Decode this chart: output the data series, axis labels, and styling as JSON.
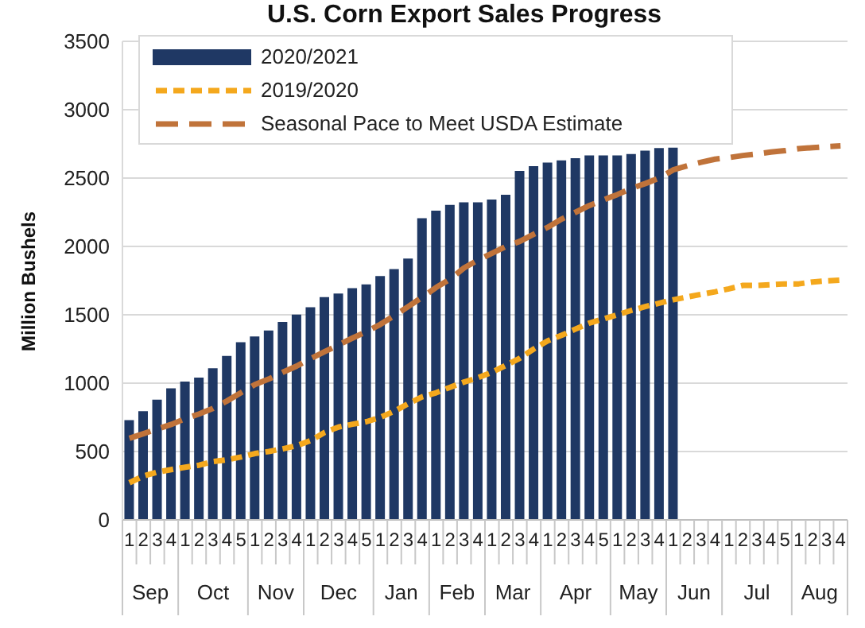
{
  "chart_data": {
    "type": "bar",
    "title": "U.S. Corn Export Sales Progress",
    "ylabel": "Million Bushels",
    "categories": [
      "1",
      "2",
      "3",
      "4",
      "1",
      "2",
      "3",
      "4",
      "5",
      "1",
      "2",
      "3",
      "4",
      "1",
      "2",
      "3",
      "4",
      "5",
      "1",
      "2",
      "3",
      "4",
      "1",
      "2",
      "3",
      "4",
      "1",
      "2",
      "3",
      "4",
      "1",
      "2",
      "3",
      "4",
      "5",
      "1",
      "2",
      "3",
      "4",
      "1",
      "2",
      "3",
      "4",
      "1",
      "2",
      "3",
      "4",
      "5",
      "1",
      "2",
      "3",
      "4"
    ],
    "annotations": [
      "Sep",
      "Oct",
      "Nov",
      "Dec",
      "Jan",
      "Feb",
      "Mar",
      "Apr",
      "May",
      "Jun",
      "Jul",
      "Aug"
    ],
    "series": [
      {
        "name": "2020/2021",
        "color": "#1f3864",
        "values": [
          729,
          795,
          880,
          962,
          1012,
          1040,
          1109,
          1199,
          1300,
          1342,
          1385,
          1447,
          1501,
          1555,
          1629,
          1656,
          1695,
          1722,
          1784,
          1835,
          1912,
          2207,
          2261,
          2304,
          2323,
          2323,
          2343,
          2378,
          2552,
          2587,
          2614,
          2630,
          2645,
          2665,
          2665,
          2665,
          2676,
          2700,
          2719,
          2723,
          null,
          null,
          null,
          null,
          null,
          null,
          null,
          null,
          null,
          null,
          null,
          null
        ]
      },
      {
        "name": "2019/2020",
        "type": "line",
        "color": "#f4a81d",
        "line_style": "dotted",
        "values": [
          272,
          320,
          350,
          368,
          385,
          400,
          427,
          440,
          460,
          485,
          500,
          520,
          543,
          580,
          640,
          679,
          700,
          718,
          750,
          795,
          850,
          900,
          930,
          970,
          1008,
          1040,
          1080,
          1130,
          1183,
          1250,
          1310,
          1350,
          1396,
          1440,
          1470,
          1500,
          1532,
          1560,
          1585,
          1610,
          1630,
          1650,
          1668,
          1690,
          1715,
          1715,
          1720,
          1726,
          1726,
          1740,
          1748,
          1753
        ]
      },
      {
        "name": "Seasonal Pace to Meet USDA Estimate",
        "type": "line",
        "color": "#c0733a",
        "line_style": "dashed",
        "values": [
          597,
          630,
          665,
          698,
          740,
          775,
          815,
          870,
          930,
          990,
          1030,
          1080,
          1125,
          1180,
          1230,
          1280,
          1330,
          1377,
          1430,
          1494,
          1560,
          1629,
          1700,
          1760,
          1843,
          1900,
          1950,
          2000,
          2037,
          2090,
          2140,
          2200,
          2250,
          2300,
          2340,
          2380,
          2424,
          2460,
          2500,
          2560,
          2590,
          2615,
          2638,
          2650,
          2665,
          2676,
          2690,
          2700,
          2715,
          2722,
          2730,
          2735
        ]
      }
    ],
    "ylim": [
      0,
      3500
    ],
    "yticks": [
      0,
      500,
      1000,
      1500,
      2000,
      2500,
      3000,
      3500
    ],
    "grid": "y",
    "legend": "top left",
    "marker": "none"
  }
}
